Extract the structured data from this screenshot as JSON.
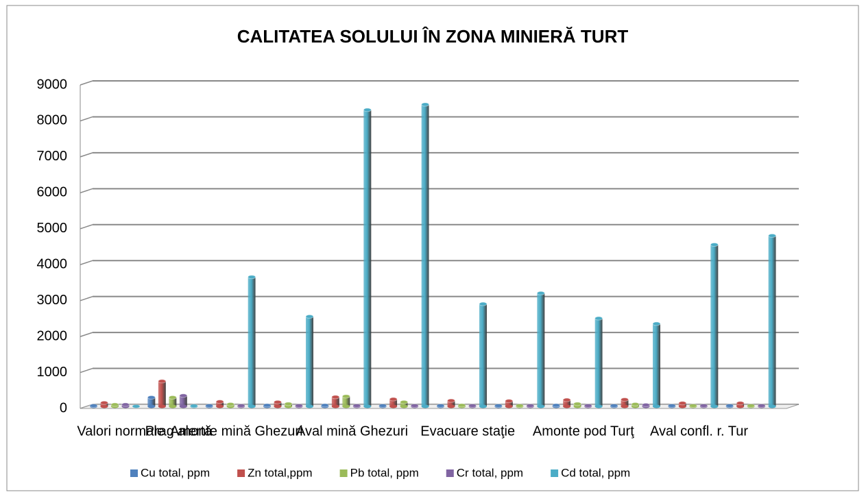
{
  "chart_data": {
    "type": "bar3d",
    "title": "CALITATEA SOLULUI ÎN ZONA MINIERĂ TURT",
    "categories": [
      "Valori normale",
      "Prag alertă",
      "Amonte mină Ghezuri",
      null,
      "Aval mină Ghezuri",
      null,
      "Evacuare staţie",
      null,
      "Amonte pod Turţ",
      null,
      "Aval confl. r. Tur",
      null
    ],
    "series": [
      {
        "name": "Cu total, ppm",
        "color": "#4f81bd",
        "values": [
          20,
          250,
          20,
          30,
          30,
          20,
          20,
          20,
          30,
          20,
          20,
          20
        ]
      },
      {
        "name": "Zn total,ppm",
        "color": "#c0504d",
        "values": [
          100,
          700,
          130,
          120,
          260,
          200,
          160,
          150,
          180,
          190,
          90,
          90
        ]
      },
      {
        "name": "Pb total, ppm",
        "color": "#9bbb59",
        "values": [
          50,
          250,
          60,
          70,
          280,
          120,
          30,
          20,
          70,
          60,
          20,
          20
        ]
      },
      {
        "name": "Cr total, ppm",
        "color": "#8064a2",
        "values": [
          50,
          300,
          20,
          20,
          20,
          20,
          20,
          20,
          20,
          40,
          20,
          20
        ]
      },
      {
        "name": "Cd total, ppm",
        "color": "#4bacc6",
        "values": [
          3,
          15,
          3600,
          2500,
          8250,
          8400,
          2850,
          3150,
          2450,
          2300,
          4500,
          4750
        ]
      }
    ],
    "ylim": [
      0,
      9000
    ],
    "yticks": [
      0,
      1000,
      2000,
      3000,
      4000,
      5000,
      6000,
      7000,
      8000,
      9000
    ],
    "grid": true,
    "legend": "bottom"
  }
}
